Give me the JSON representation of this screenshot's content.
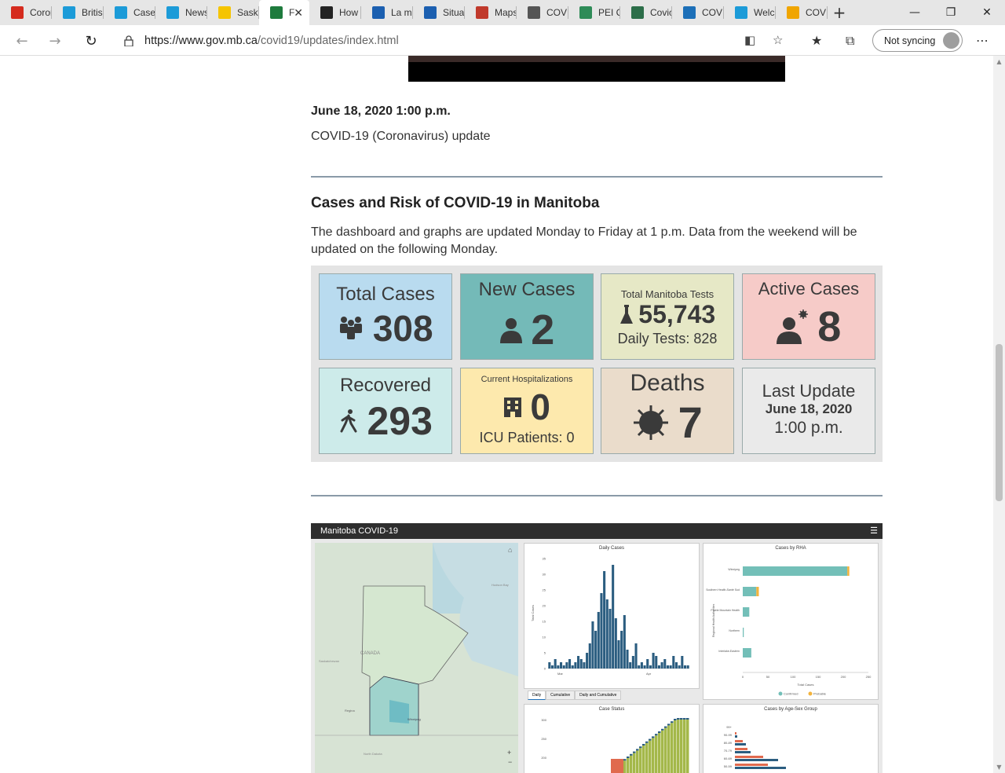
{
  "browser": {
    "tabs": [
      {
        "label": "Coron",
        "color": "#d52b1e"
      },
      {
        "label": "Britis",
        "color": "#1c9bd8"
      },
      {
        "label": "Cases",
        "color": "#1c9bd8"
      },
      {
        "label": "News",
        "color": "#1c9bd8"
      },
      {
        "label": "Saska",
        "color": "#f5c400"
      },
      {
        "label": "F",
        "color": "#1e7b3d",
        "active": true
      },
      {
        "label": "How",
        "color": "#222222"
      },
      {
        "label": "La ma",
        "color": "#1b5fb0"
      },
      {
        "label": "Situat",
        "color": "#1b5fb0"
      },
      {
        "label": "Maps",
        "color": "#c0392b"
      },
      {
        "label": "COVI",
        "color": "#555555"
      },
      {
        "label": "PEI C",
        "color": "#2e8b57"
      },
      {
        "label": "Covic",
        "color": "#2c6e49"
      },
      {
        "label": "COVI",
        "color": "#1c6fb8"
      },
      {
        "label": "Welc",
        "color": "#1c9bd8"
      },
      {
        "label": "COVI",
        "color": "#f0a500"
      }
    ],
    "new_tab_symbol": "+",
    "url_host": "https://www.gov.mb.ca",
    "url_path": "/covid19/updates/index.html",
    "sync_label": "Not syncing"
  },
  "page": {
    "date": "June 18, 2020 1:00 p.m.",
    "update_title": "COVID-19 (Coronavirus) update",
    "section_title": "Cases and Risk of COVID-19 in Manitoba",
    "section_desc": "The dashboard and graphs are updated Monday to Friday at 1 p.m. Data from the weekend will be updated on the following Monday."
  },
  "cards": {
    "total_cases": {
      "title": "Total Cases",
      "value": "308",
      "bg": "#b9dbef"
    },
    "new_cases": {
      "title": "New Cases",
      "value": "2",
      "bg": "#74bab8"
    },
    "tests": {
      "title": "Total Manitoba Tests",
      "value": "55,743",
      "daily": "Daily Tests: 828",
      "bg": "#e6e8c6"
    },
    "active": {
      "title": "Active Cases",
      "value": "8",
      "bg": "#f6cbc8"
    },
    "recovered": {
      "title": "Recovered",
      "value": "293",
      "bg": "#cdebea"
    },
    "hosp": {
      "title": "Current Hospitalizations",
      "value": "0",
      "icu": "ICU Patients: 0",
      "bg": "#fde9ad"
    },
    "deaths": {
      "title": "Deaths",
      "value": "7",
      "bg": "#eadccb"
    },
    "last_update": {
      "title": "Last Update",
      "date": "June 18, 2020",
      "time": "1:00 p.m.",
      "bg": "#eaeaea"
    }
  },
  "embed": {
    "title": "Manitoba COVID-19",
    "map_labels": [
      "CANADA",
      "Hudson Bay",
      "Saskatchewan",
      "Regina",
      "Winnipeg",
      "North Dakota"
    ],
    "panels": {
      "daily_title": "Daily Cases",
      "daily_ylabel": "Total Cases",
      "daily_xticks": [
        "Mar",
        "Apr"
      ],
      "daily_yticks": [
        "35",
        "30",
        "25",
        "20",
        "15",
        "10",
        "5",
        "0"
      ],
      "daily_tabs": [
        "Daily",
        "Cumulative",
        "Daily and Cumulative"
      ],
      "rha_title": "Cases by RHA",
      "rha_ylabel": "Regional Health Authorities",
      "rha_xlabel": "Total Cases",
      "rha_categories": [
        "Winnipeg",
        "Southern Health-Santé Sud",
        "Prairie Mountain Health",
        "Northern",
        "Interlake-Eastern"
      ],
      "rha_xticks": [
        "0",
        "50",
        "100",
        "150",
        "200",
        "250"
      ],
      "rha_legend": [
        "Confirmed",
        "Probable"
      ],
      "status_title": "Case Status",
      "status_yticks": [
        "300",
        "250",
        "200"
      ],
      "age_title": "Cases by Age-Sex Group",
      "age_groups": [
        "99+",
        "90-99",
        "80-89",
        "70-79",
        "60-69",
        "50-59"
      ]
    }
  },
  "chart_data": [
    {
      "type": "bar",
      "title": "Daily Cases",
      "ylabel": "Total Cases",
      "ylim": [
        0,
        35
      ],
      "values": [
        2,
        1,
        3,
        1,
        2,
        1,
        2,
        3,
        1,
        2,
        4,
        3,
        2,
        5,
        8,
        15,
        12,
        18,
        24,
        31,
        22,
        19,
        33,
        16,
        9,
        12,
        17,
        6,
        2,
        4,
        8,
        1,
        2,
        1,
        3,
        1,
        5,
        4,
        1,
        2,
        3,
        1,
        1,
        4,
        2,
        1,
        4,
        1,
        1
      ]
    },
    {
      "type": "bar",
      "title": "Cases by RHA",
      "xlabel": "Total Cases",
      "ylabel": "Regional Health Authorities",
      "categories": [
        "Winnipeg",
        "Southern Health-Santé Sud",
        "Prairie Mountain Health",
        "Northern",
        "Interlake-Eastern"
      ],
      "series": [
        {
          "name": "Confirmed",
          "values": [
            208,
            27,
            13,
            2,
            17
          ]
        },
        {
          "name": "Probable",
          "values": [
            4,
            5,
            0,
            0,
            0
          ]
        }
      ],
      "xlim": [
        0,
        250
      ]
    }
  ]
}
